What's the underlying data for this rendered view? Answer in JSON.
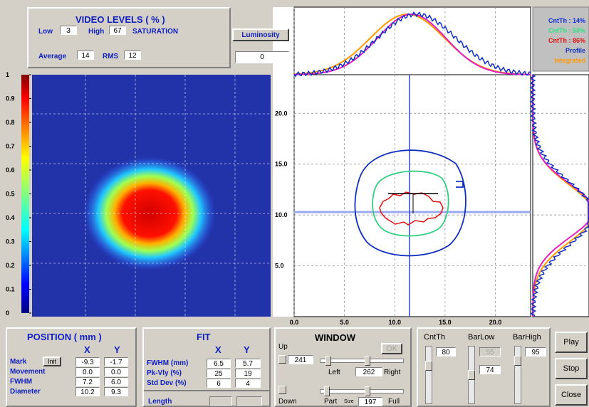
{
  "video_levels": {
    "title": "VIDEO LEVELS ( % )",
    "low_label": "Low",
    "low": "3",
    "high_label": "High",
    "high": "67",
    "saturation": "SATURATION",
    "average_label": "Average",
    "average": "14",
    "rms_label": "RMS",
    "rms": "12"
  },
  "luminosity": {
    "button": "Luminosity",
    "value": "0"
  },
  "colorbar": {
    "ylim": [
      0,
      1
    ],
    "yticks": [
      0,
      0.1,
      0.2,
      0.3,
      0.4,
      0.5,
      0.6,
      0.7,
      0.8,
      0.9,
      1
    ]
  },
  "plot": {
    "xlim": [
      0,
      23.5
    ],
    "ylim": [
      0,
      23.8
    ],
    "xticks": [
      {
        "value": 0,
        "label": "0.0"
      },
      {
        "value": 5,
        "label": "5.0"
      },
      {
        "value": 10,
        "label": "10.0"
      },
      {
        "value": 15,
        "label": "15.0"
      },
      {
        "value": 20,
        "label": "20.0"
      }
    ],
    "yticks": [
      {
        "value": 5,
        "label": "5.0"
      },
      {
        "value": 10,
        "label": "10.0"
      },
      {
        "value": 15,
        "label": "15.0"
      },
      {
        "value": 20,
        "label": "20.0"
      }
    ]
  },
  "legend": [
    "CntTh : 14%",
    "CntTh : 50%",
    "CntTh : 86%",
    "Profile",
    "Integrated"
  ],
  "position": {
    "title": "POSITION ( mm )",
    "x": "X",
    "y": "Y",
    "init": "Init",
    "rows": [
      [
        "Mark",
        "-9.3",
        "-1.7"
      ],
      [
        "Movement",
        "0.0",
        "0.0"
      ],
      [
        "FWHM",
        "7.2",
        "6.0"
      ],
      [
        "Diameter",
        "10.2",
        "9.3"
      ]
    ]
  },
  "fit": {
    "title": "FIT",
    "x": "X",
    "y": "Y",
    "rows": [
      [
        "FWHM (mm)",
        "6.5",
        "5.7"
      ],
      [
        "Pk-Vly (%)",
        "25",
        "19"
      ],
      [
        "Std Dev (%)",
        "6",
        "4"
      ]
    ],
    "length": "Length"
  },
  "window": {
    "title": "WINDOW",
    "up": "Up",
    "up_value": "241",
    "ok": "OK",
    "left": "Left",
    "left_value": "262",
    "right": "Right",
    "down": "Down",
    "part": "Part",
    "size": "Size",
    "size_value": "197",
    "full": "Full"
  },
  "controls": {
    "cntth": "CntTh",
    "cntth_value": "80",
    "barlow": "BarLow",
    "barlow_value": "55",
    "barlow_value2": "74",
    "barhigh": "BarHigh",
    "barhigh_value": "95"
  },
  "buttons": [
    "Play",
    "Stop",
    "Close"
  ]
}
